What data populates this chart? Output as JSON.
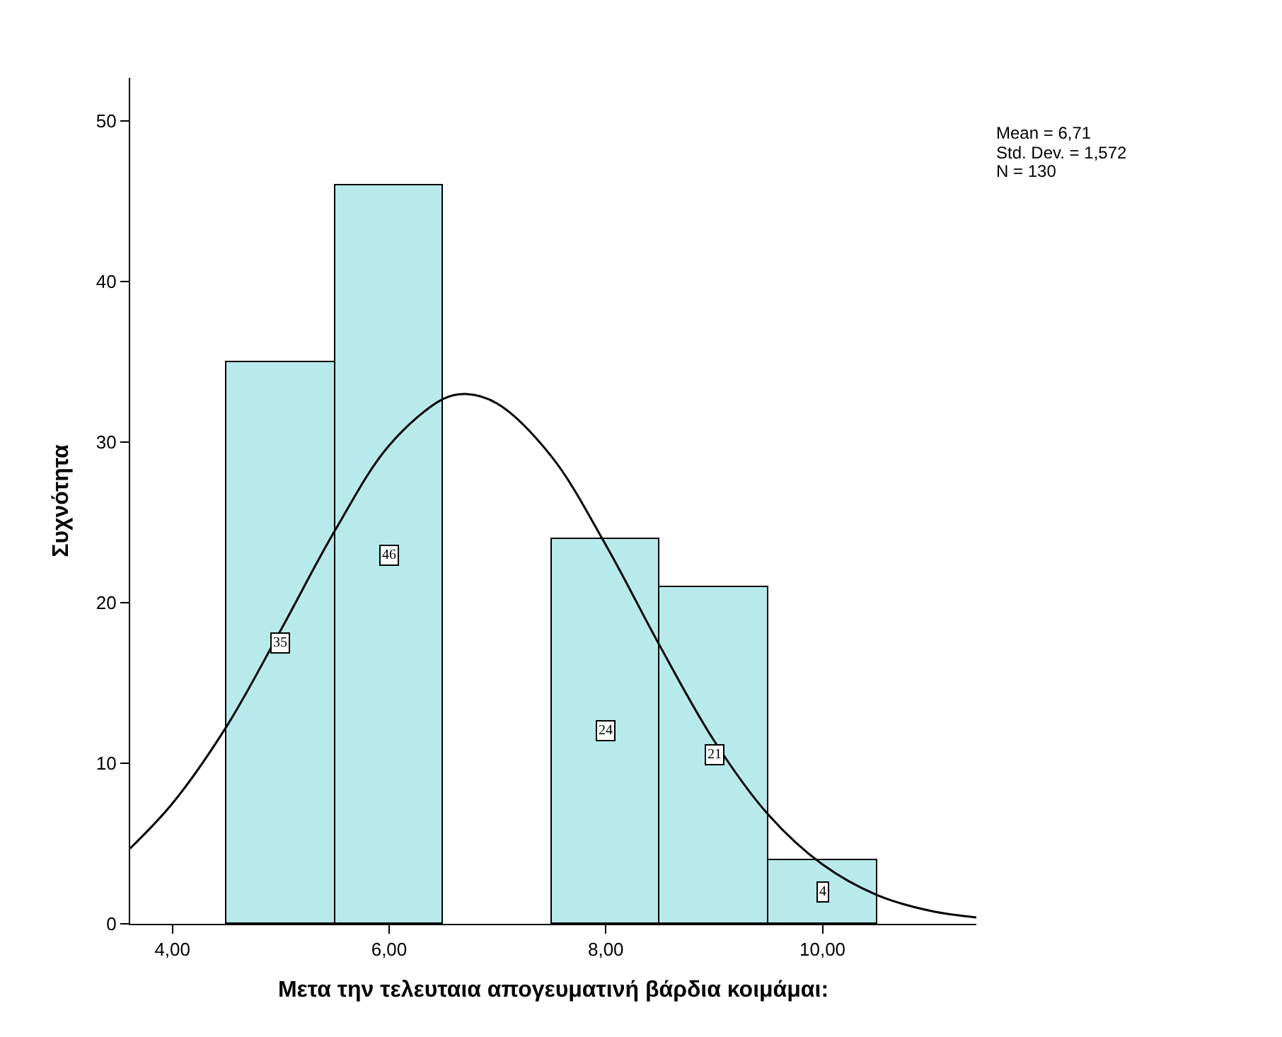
{
  "chart_data": {
    "type": "histogram",
    "xlabel": "Μετα την τελευταια απογευματινή βάρδια κοιμάμαι:",
    "ylabel": "Συχνότητα",
    "bins": [
      4.5,
      5.5,
      6.5,
      7.5,
      8.5,
      9.5,
      10.5
    ],
    "series": [
      {
        "type": "histogram",
        "color": "#b8eaec",
        "values": [
          35,
          46,
          0,
          24,
          21,
          4
        ],
        "value_labels": [
          "35",
          "46",
          null,
          "24",
          "21",
          "4"
        ]
      },
      {
        "type": "line",
        "color": "#000000",
        "x": [
          3.61,
          4,
          4.5,
          5,
          5.5,
          6,
          6.5,
          6.71,
          7,
          7.5,
          8,
          8.5,
          9,
          9.5,
          10,
          10.5,
          11,
          11.42
        ],
        "values": [
          4.7,
          7.5,
          12.3,
          18.3,
          24.5,
          29.8,
          32.7,
          33.0,
          32.4,
          29.1,
          23.6,
          17.3,
          11.4,
          6.8,
          3.7,
          1.8,
          0.8,
          0.4
        ]
      }
    ],
    "xlim": [
      3.61,
      11.42
    ],
    "xticks": [
      {
        "value": 4,
        "label": "4,00"
      },
      {
        "value": 6,
        "label": "6,00"
      },
      {
        "value": 8,
        "label": "8,00"
      },
      {
        "value": 10,
        "label": "10,00"
      }
    ],
    "ylim": [
      0,
      52.7
    ],
    "yticks": [
      0,
      10,
      20,
      30,
      40,
      50
    ],
    "annotations": [
      "Mean = 6,71",
      "Std. Dev. = 1,572",
      "N = 130"
    ],
    "marker": "none",
    "line_style": "solid"
  }
}
